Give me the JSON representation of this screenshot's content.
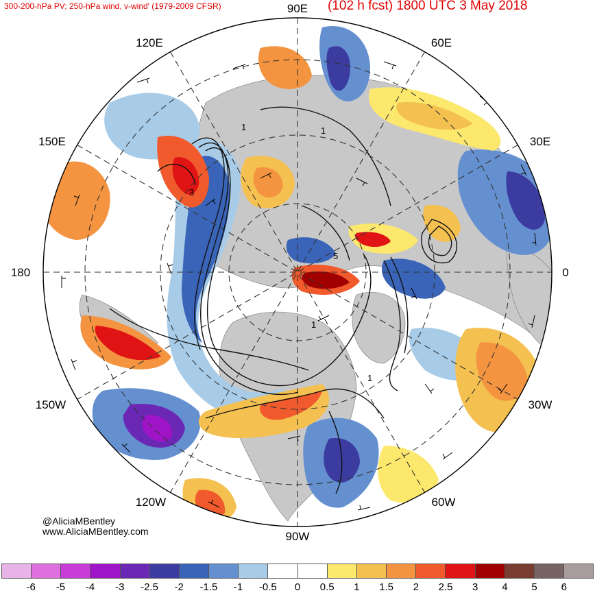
{
  "header": {
    "title_left": "300-200-hPa PV; 250-hPa wind, v-wind' (1979-2009 CFSR)",
    "title_right": "(102 h fcst) 1800 UTC 3 May 2018"
  },
  "credits": {
    "handle": "@AliciaMBentley",
    "website": "www.AliciaMBentley.com"
  },
  "map": {
    "projection": "north-polar-stereographic",
    "longitude_labels": {
      "lon_90e": "90E",
      "lon_60e": "60E",
      "lon_30e": "30E",
      "lon_0": "0",
      "lon_30w": "30W",
      "lon_60w": "60W",
      "lon_90w": "90W",
      "lon_120w": "120W",
      "lon_150w": "150W",
      "lon_180": "180",
      "lon_150e": "150E",
      "lon_120e": "120E"
    },
    "contour_labels": {
      "c1": "1",
      "c2": "1",
      "c3": "3",
      "c4": "5",
      "c5": "1",
      "c6": "1"
    }
  },
  "colorbar": {
    "ticks": [
      "-6",
      "-5",
      "-4",
      "-3",
      "-2.5",
      "-2",
      "-1.5",
      "-1",
      "-0.5",
      "0",
      "0.5",
      "1",
      "1.5",
      "2",
      "2.5",
      "3",
      "4",
      "5",
      "6"
    ],
    "colors": [
      "#e8b4e8",
      "#e070e0",
      "#c83cd8",
      "#a014c8",
      "#6a28b4",
      "#3c3ca0",
      "#3a64b8",
      "#6490d0",
      "#a8cce8",
      "#ffffff",
      "#ffffff",
      "#fce86c",
      "#f4c050",
      "#f49440",
      "#f05a2c",
      "#e01414",
      "#a00000",
      "#783c30",
      "#786464",
      "#a89c9c"
    ]
  }
}
